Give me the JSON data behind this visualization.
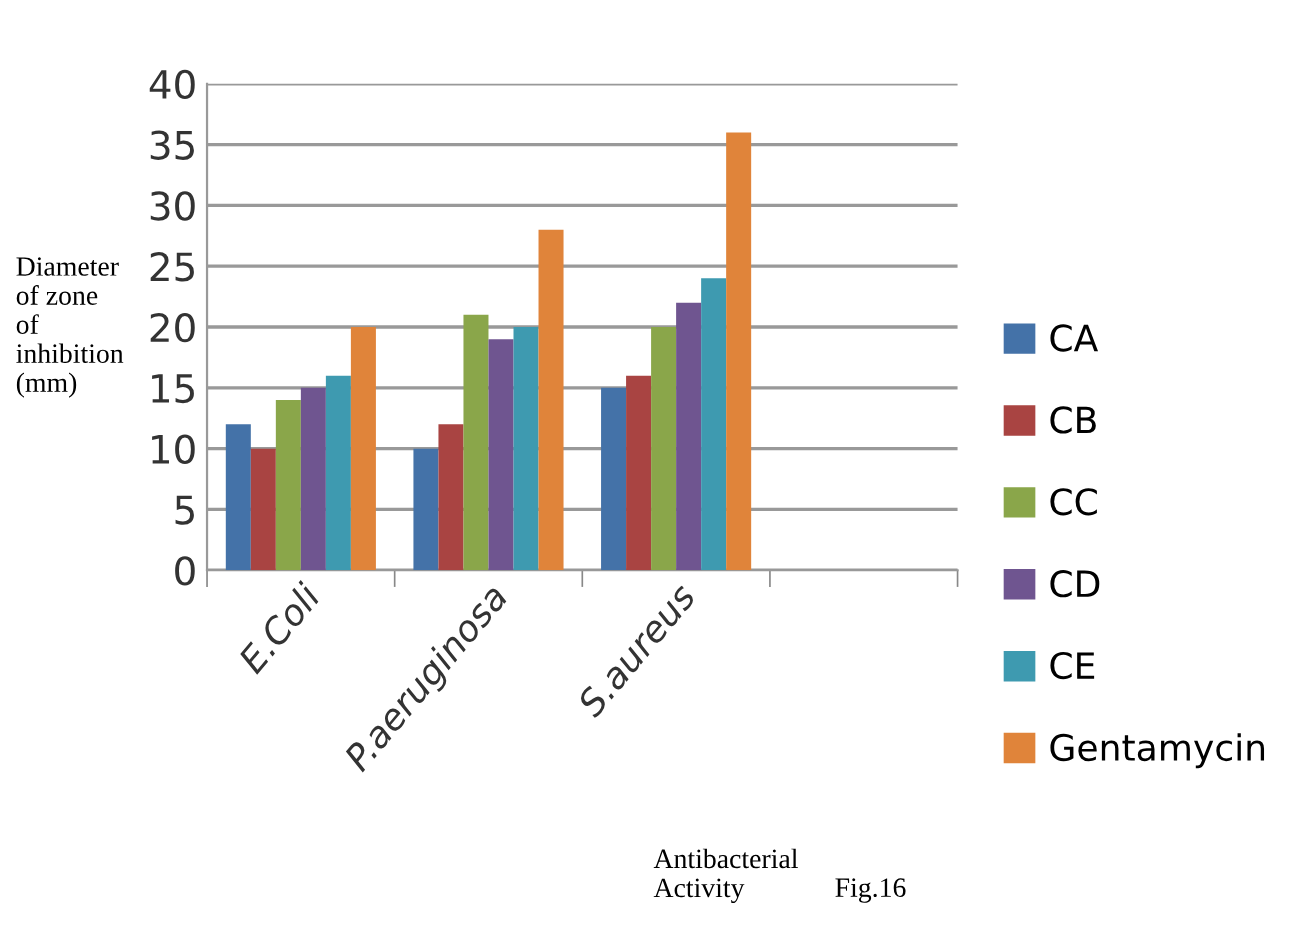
{
  "chart_data": {
    "type": "bar",
    "xlabel": "Antibacterial\nActivity",
    "ylabel": "Diameter\nof zone\nof\ninhibition\n(mm)",
    "annotations": [
      "Fig.16"
    ],
    "categories": [
      "E.Coli",
      "P.aeruginosa",
      "S.aureus",
      null
    ],
    "series": [
      {
        "name": "CA",
        "color": "#4472a8",
        "values": [
          12,
          10,
          15,
          null
        ]
      },
      {
        "name": "CB",
        "color": "#a94442",
        "values": [
          10,
          12,
          16,
          null
        ]
      },
      {
        "name": "CC",
        "color": "#8aa64a",
        "values": [
          14,
          21,
          20,
          null
        ]
      },
      {
        "name": "CD",
        "color": "#6f5590",
        "values": [
          15,
          19,
          22,
          null
        ]
      },
      {
        "name": "CE",
        "color": "#3e9ab0",
        "values": [
          16,
          20,
          24,
          null
        ]
      },
      {
        "name": "Gentamycin",
        "color": "#e0843a",
        "values": [
          20,
          28,
          36,
          null
        ]
      }
    ],
    "ylim": [
      0,
      40
    ],
    "yticks": [
      0,
      5,
      10,
      15,
      20,
      25,
      30,
      35,
      40
    ],
    "grid": "y",
    "legend": "right"
  }
}
